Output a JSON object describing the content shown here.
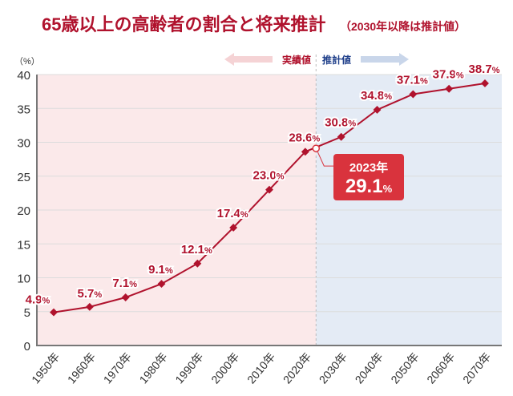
{
  "chart_data": {
    "type": "line",
    "title": "65歳以上の高齢者の割合と将来推計",
    "subtitle": "（2030年以降は推計値）",
    "ylabel": "（%）",
    "ylim": [
      0,
      40
    ],
    "yticks": [
      0,
      5,
      10,
      15,
      20,
      25,
      30,
      35,
      40
    ],
    "categories": [
      "1950年",
      "1960年",
      "1970年",
      "1980年",
      "1990年",
      "2000年",
      "2010年",
      "2020年",
      "2030年",
      "2040年",
      "2050年",
      "2060年",
      "2070年"
    ],
    "x": [
      1950,
      1960,
      1970,
      1980,
      1990,
      2000,
      2010,
      2020,
      2030,
      2040,
      2050,
      2060,
      2070
    ],
    "values": [
      4.9,
      5.7,
      7.1,
      9.1,
      12.1,
      17.4,
      23.0,
      28.6,
      30.8,
      34.8,
      37.1,
      37.9,
      38.7
    ],
    "value_labels": [
      "4.9",
      "5.7",
      "7.1",
      "9.1",
      "12.1",
      "17.4",
      "23.0",
      "28.6",
      "30.8",
      "34.8",
      "37.1",
      "37.9",
      "38.7"
    ],
    "unit": "%",
    "grid": true,
    "regions": {
      "actual_label": "実績値",
      "projection_label": "推計値",
      "split_year": 2023
    },
    "highlight": {
      "year": 2023,
      "value": 29.1,
      "year_label": "2023年",
      "value_label": "29.1"
    },
    "colors": {
      "line": "#b0122d",
      "actual_bg": "#fbe9ea",
      "projection_bg": "#e4ebf5",
      "callout": "#d9333d",
      "arrow_actual": "#f5d3d5",
      "arrow_projection": "#c9d6ea",
      "projection_text": "#1f3f8a"
    }
  }
}
